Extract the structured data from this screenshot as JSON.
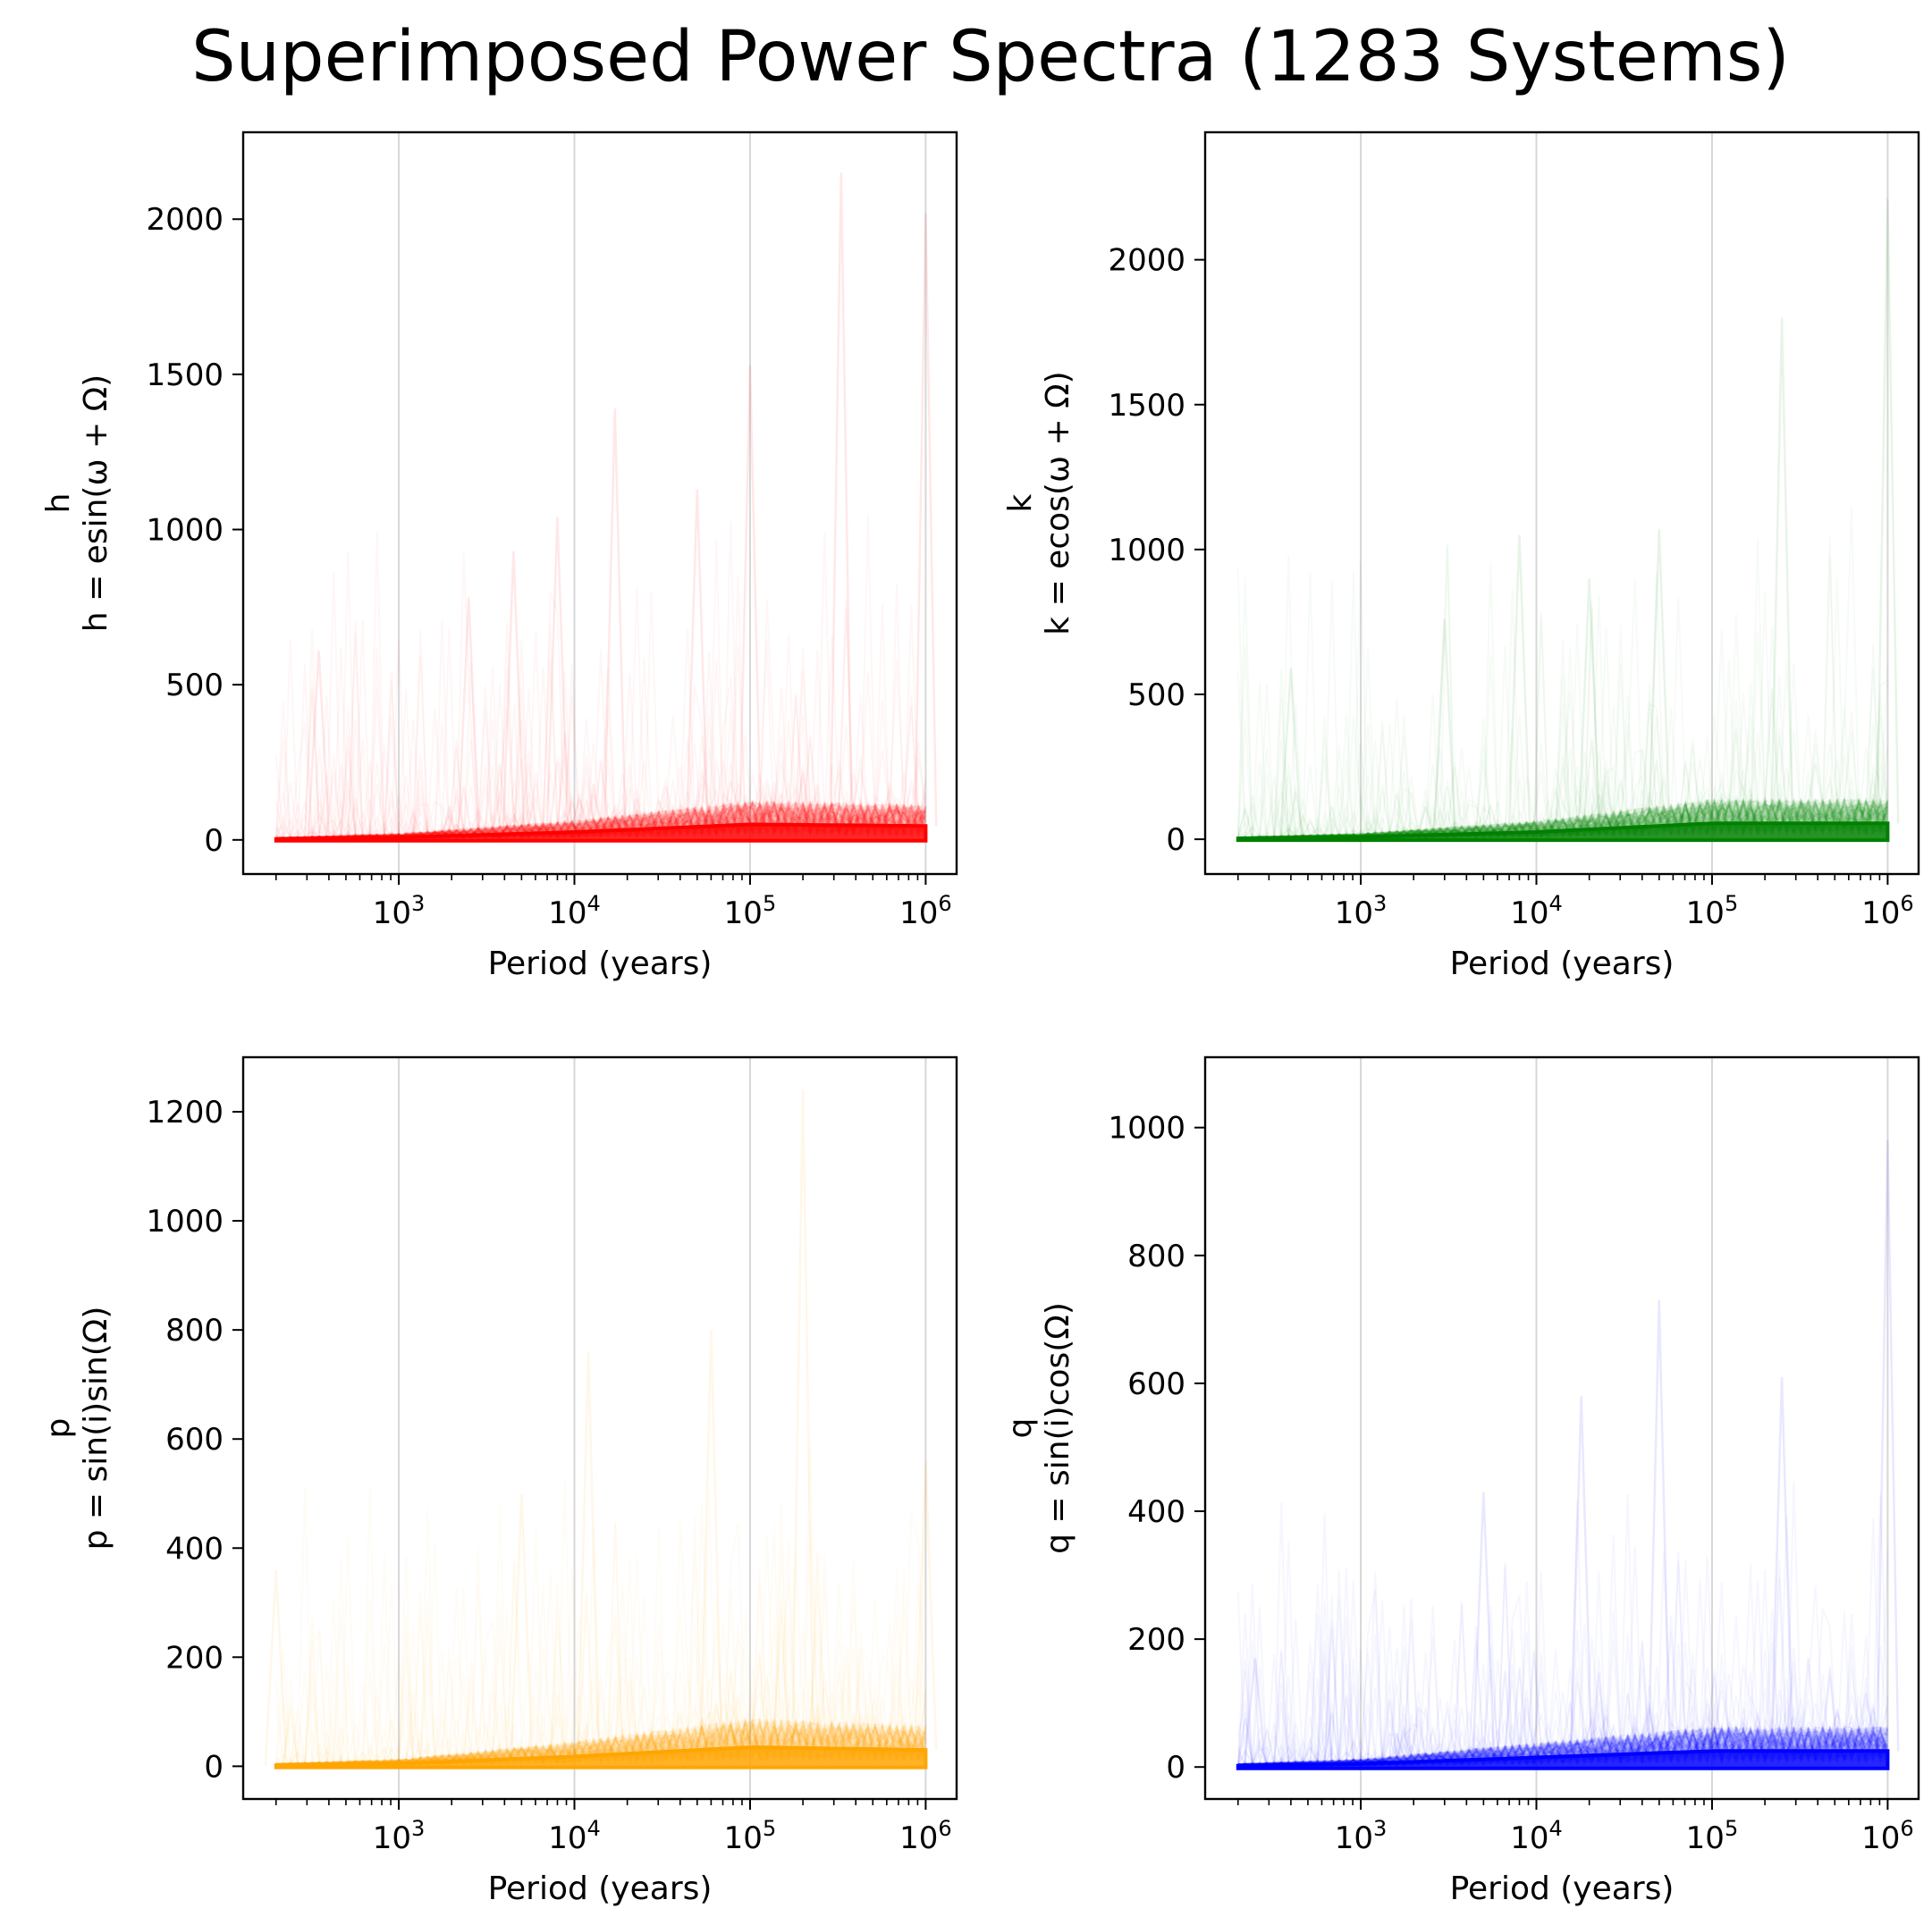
{
  "figure": {
    "title": "Superimposed Power Spectra (1283 Systems)"
  },
  "chart_data": [
    {
      "type": "line",
      "panel": "top-left",
      "series_label": "h",
      "ylabel_top": "h",
      "ylabel_bottom": "h = esin(ω + Ω)",
      "xlabel": "Period (years)",
      "xscale": "log",
      "xlim": [
        130,
        1500000
      ],
      "ylim": [
        -110,
        2280
      ],
      "xticks": [
        1000,
        10000,
        100000,
        1000000
      ],
      "xtick_labels": [
        "10^3",
        "10^4",
        "10^5",
        "10^6"
      ],
      "yticks": [
        0,
        500,
        1000,
        1500,
        2000
      ],
      "ytick_labels": [
        "0",
        "500",
        "1000",
        "1500",
        "2000"
      ],
      "grid": "x-major",
      "color": "#ff0000",
      "n_systems": 1283,
      "x_range": [
        200,
        1000000
      ],
      "band_envelope": {
        "x": [
          200,
          1000,
          10000,
          100000,
          1000000
        ],
        "y": [
          3,
          8,
          25,
          50,
          45
        ]
      },
      "spikes": [
        {
          "x": 330000,
          "y": 2150
        },
        {
          "x": 1000000,
          "y": 2020
        },
        {
          "x": 100000,
          "y": 1530
        },
        {
          "x": 17000,
          "y": 1390
        },
        {
          "x": 8000,
          "y": 1040
        },
        {
          "x": 4500,
          "y": 930
        },
        {
          "x": 50000,
          "y": 1130
        },
        {
          "x": 350,
          "y": 610
        },
        {
          "x": 2500,
          "y": 780
        }
      ]
    },
    {
      "type": "line",
      "panel": "top-right",
      "series_label": "k",
      "ylabel_top": "k",
      "ylabel_bottom": "k = ecos(ω + Ω)",
      "xlabel": "Period (years)",
      "xscale": "log",
      "xlim": [
        130,
        1500000
      ],
      "ylim": [
        -120,
        2440
      ],
      "xticks": [
        1000,
        10000,
        100000,
        1000000
      ],
      "xtick_labels": [
        "10^3",
        "10^4",
        "10^5",
        "10^6"
      ],
      "yticks": [
        0,
        500,
        1000,
        1500,
        2000
      ],
      "ytick_labels": [
        "0",
        "500",
        "1000",
        "1500",
        "2000"
      ],
      "grid": "x-major",
      "color": "#008000",
      "n_systems": 1283,
      "x_range": [
        200,
        1000000
      ],
      "band_envelope": {
        "x": [
          200,
          1000,
          10000,
          100000,
          1000000
        ],
        "y": [
          3,
          8,
          25,
          55,
          55
        ]
      },
      "spikes": [
        {
          "x": 1000000,
          "y": 2210
        },
        {
          "x": 250000,
          "y": 1800
        },
        {
          "x": 8000,
          "y": 1050
        },
        {
          "x": 50000,
          "y": 1070
        },
        {
          "x": 20000,
          "y": 900
        },
        {
          "x": 400,
          "y": 590
        },
        {
          "x": 3000,
          "y": 760
        }
      ]
    },
    {
      "type": "line",
      "panel": "bottom-left",
      "series_label": "p",
      "ylabel_top": "p",
      "ylabel_bottom": "p = sin(i)sin(Ω)",
      "xlabel": "Period (years)",
      "xscale": "log",
      "xlim": [
        130,
        1500000
      ],
      "ylim": [
        -60,
        1300
      ],
      "xticks": [
        1000,
        10000,
        100000,
        1000000
      ],
      "xtick_labels": [
        "10^3",
        "10^4",
        "10^5",
        "10^6"
      ],
      "yticks": [
        0,
        200,
        400,
        600,
        800,
        1000,
        1200
      ],
      "ytick_labels": [
        "0",
        "200",
        "400",
        "600",
        "800",
        "1000",
        "1200"
      ],
      "grid": "x-major",
      "color": "#ffa500",
      "n_systems": 1283,
      "x_range": [
        200,
        1000000
      ],
      "band_envelope": {
        "x": [
          200,
          1000,
          10000,
          100000,
          1000000
        ],
        "y": [
          2,
          5,
          18,
          35,
          30
        ]
      },
      "spikes": [
        {
          "x": 200000,
          "y": 1240
        },
        {
          "x": 60000,
          "y": 800
        },
        {
          "x": 12000,
          "y": 760
        },
        {
          "x": 1000000,
          "y": 560
        },
        {
          "x": 200,
          "y": 360
        },
        {
          "x": 5000,
          "y": 500
        }
      ]
    },
    {
      "type": "line",
      "panel": "bottom-right",
      "series_label": "q",
      "ylabel_top": "q",
      "ylabel_bottom": "q = sin(i)cos(Ω)",
      "xlabel": "Period (years)",
      "xscale": "log",
      "xlim": [
        130,
        1500000
      ],
      "ylim": [
        -50,
        1110
      ],
      "xticks": [
        1000,
        10000,
        100000,
        1000000
      ],
      "xtick_labels": [
        "10^3",
        "10^4",
        "10^5",
        "10^6"
      ],
      "yticks": [
        0,
        200,
        400,
        600,
        800,
        1000
      ],
      "ytick_labels": [
        "0",
        "200",
        "400",
        "600",
        "800",
        "1000"
      ],
      "grid": "x-major",
      "color": "#0000ff",
      "n_systems": 1283,
      "x_range": [
        200,
        1000000
      ],
      "band_envelope": {
        "x": [
          200,
          1000,
          10000,
          100000,
          1000000
        ],
        "y": [
          2,
          5,
          15,
          25,
          25
        ]
      },
      "spikes": [
        {
          "x": 1000000,
          "y": 980
        },
        {
          "x": 50000,
          "y": 730
        },
        {
          "x": 18000,
          "y": 580
        },
        {
          "x": 250000,
          "y": 610
        },
        {
          "x": 5000,
          "y": 430
        },
        {
          "x": 250,
          "y": 170
        }
      ]
    }
  ]
}
